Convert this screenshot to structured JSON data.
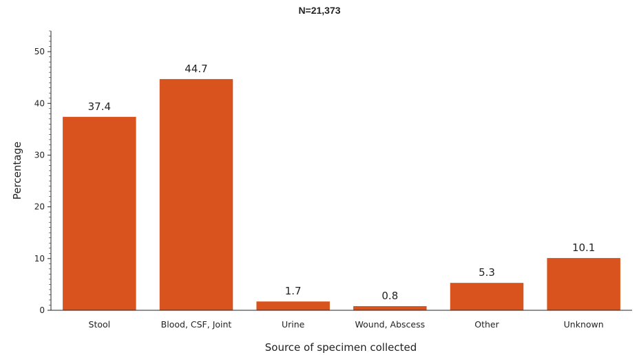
{
  "chart_data": {
    "type": "bar",
    "title": "N=21,373",
    "xlabel": "Source of specimen collected",
    "ylabel": "Percentage",
    "categories": [
      "Stool",
      "Blood, CSF, Joint",
      "Urine",
      "Wound, Abscess",
      "Other",
      "Unknown"
    ],
    "values": [
      37.4,
      44.7,
      1.7,
      0.8,
      5.3,
      10.1
    ],
    "data_labels": [
      "37.4",
      "44.7",
      "1.7",
      "0.8",
      "5.3",
      "10.1"
    ],
    "ylim": [
      0,
      54
    ],
    "yticks": [
      0,
      10,
      20,
      30,
      40,
      50
    ],
    "grid": false,
    "legend": "none",
    "bar_color": "#d9531e"
  }
}
